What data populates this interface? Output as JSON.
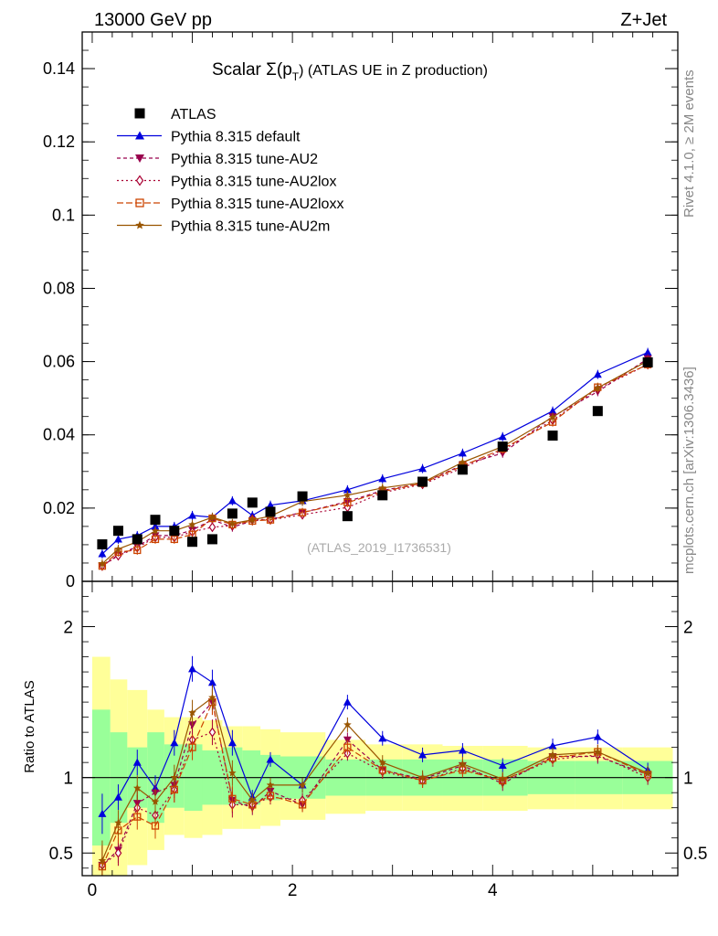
{
  "header": {
    "left": "13000 GeV pp",
    "right": "Z+Jet"
  },
  "side": {
    "rivet": "Rivet 4.1.0, ≥ 2M events",
    "mcplots": "mcplots.cern.ch [arXiv:1306.3436]"
  },
  "chart_data": {
    "type": "line",
    "title_main": "Scalar Σ(p",
    "title_sub": "T",
    "title_rest": ") (ATLAS UE in Z production)",
    "watermark": "(ATLAS_2019_I1736531)",
    "ylabel_ratio": "Ratio to ATLAS",
    "xlim": [
      -0.1,
      5.85
    ],
    "ylim_main": [
      0,
      0.15
    ],
    "ylim_ratio": [
      0.35,
      2.3
    ],
    "x_ticks": [
      {
        "v": 0,
        "label": "0"
      },
      {
        "v": 2,
        "label": "2"
      },
      {
        "v": 4,
        "label": "4"
      }
    ],
    "y_ticks_main": [
      {
        "v": 0,
        "label": "0"
      },
      {
        "v": 0.02,
        "label": "0.02"
      },
      {
        "v": 0.04,
        "label": "0.04"
      },
      {
        "v": 0.06,
        "label": "0.06"
      },
      {
        "v": 0.08,
        "label": "0.08"
      },
      {
        "v": 0.1,
        "label": "0.1"
      },
      {
        "v": 0.12,
        "label": "0.12"
      },
      {
        "v": 0.14,
        "label": "0.14"
      }
    ],
    "y_ticks_ratio": [
      {
        "v": 0.5,
        "label": "0.5"
      },
      {
        "v": 1,
        "label": "1"
      },
      {
        "v": 2,
        "label": "2"
      }
    ],
    "x": [
      0.1,
      0.26,
      0.45,
      0.63,
      0.82,
      1.0,
      1.2,
      1.4,
      1.6,
      1.78,
      2.1,
      2.55,
      2.9,
      3.3,
      3.7,
      4.1,
      4.6,
      5.05,
      5.55
    ],
    "data_points": {
      "name": "ATLAS",
      "values": [
        0.0101,
        0.0138,
        0.0115,
        0.0168,
        0.0138,
        0.0108,
        0.0115,
        0.0185,
        0.0215,
        0.019,
        0.0232,
        0.0178,
        0.0235,
        0.0272,
        0.0305,
        0.0368,
        0.0398,
        0.0465,
        0.0598
      ]
    },
    "series": [
      {
        "name": "Pythia 8.315 default",
        "color": "#0000dd",
        "dash": "",
        "marker": "triangle-up",
        "values": [
          0.0075,
          0.0115,
          0.0125,
          0.015,
          0.015,
          0.018,
          0.0175,
          0.022,
          0.018,
          0.0208,
          0.022,
          0.025,
          0.028,
          0.0308,
          0.035,
          0.0395,
          0.0465,
          0.0565,
          0.0625
        ]
      },
      {
        "name": "Pythia 8.315 tune-AU2",
        "color": "#99004d",
        "dash": "4,3",
        "marker": "triangle-down",
        "values": [
          0.0042,
          0.0072,
          0.0095,
          0.0125,
          0.0125,
          0.014,
          0.0168,
          0.0148,
          0.0165,
          0.017,
          0.0188,
          0.0218,
          0.0248,
          0.0268,
          0.0318,
          0.035,
          0.045,
          0.0518,
          0.0608
        ]
      },
      {
        "name": "Pythia 8.315 tune-AU2lox",
        "color": "#aa0033",
        "dash": "2,3",
        "marker": "diamond",
        "values": [
          0.0042,
          0.007,
          0.0092,
          0.012,
          0.012,
          0.0135,
          0.0148,
          0.0152,
          0.017,
          0.0168,
          0.0182,
          0.0202,
          0.0242,
          0.0265,
          0.031,
          0.0358,
          0.044,
          0.0525,
          0.0592
        ]
      },
      {
        "name": "Pythia 8.315 tune-AU2loxx",
        "color": "#cc4400",
        "dash": "7,3",
        "marker": "square-open",
        "values": [
          0.0042,
          0.008,
          0.0085,
          0.0115,
          0.0115,
          0.0128,
          0.0172,
          0.0155,
          0.0165,
          0.0168,
          0.0188,
          0.0215,
          0.0245,
          0.0268,
          0.0315,
          0.0362,
          0.0435,
          0.053,
          0.0592
        ]
      },
      {
        "name": "Pythia 8.315 tune-AU2m",
        "color": "#995500",
        "dash": "",
        "marker": "star",
        "values": [
          0.0048,
          0.0088,
          0.0108,
          0.0138,
          0.0138,
          0.0155,
          0.0175,
          0.0158,
          0.0168,
          0.0178,
          0.0218,
          0.0235,
          0.0255,
          0.027,
          0.0325,
          0.0368,
          0.0448,
          0.0528,
          0.0602
        ]
      }
    ],
    "ratio_series": [
      {
        "name": "Pythia 8.315 default",
        "values": [
          0.76,
          0.87,
          1.1,
          0.93,
          1.23,
          1.72,
          1.63,
          1.23,
          0.87,
          1.12,
          0.95,
          1.5,
          1.26,
          1.15,
          1.18,
          1.08,
          1.21,
          1.27,
          1.05
        ]
      },
      {
        "name": "Pythia 8.315 tune-AU2",
        "values": [
          0.42,
          0.52,
          0.83,
          0.9,
          0.95,
          1.35,
          1.5,
          0.85,
          0.8,
          0.91,
          0.82,
          1.25,
          1.05,
          0.99,
          1.08,
          0.96,
          1.14,
          1.14,
          1.02
        ]
      },
      {
        "name": "Pythia 8.315 tune-AU2lox",
        "values": [
          0.42,
          0.5,
          0.8,
          0.75,
          0.92,
          1.25,
          1.3,
          0.82,
          0.82,
          0.87,
          0.85,
          1.16,
          1.04,
          0.98,
          1.06,
          0.98,
          1.12,
          1.15,
          1.0
        ]
      },
      {
        "name": "Pythia 8.315 tune-AU2loxx",
        "values": [
          0.41,
          0.65,
          0.74,
          0.68,
          0.92,
          1.2,
          1.5,
          0.86,
          0.82,
          0.88,
          0.82,
          1.2,
          1.05,
          0.98,
          1.05,
          0.98,
          1.13,
          1.17,
          1.02
        ]
      },
      {
        "name": "Pythia 8.315 tune-AU2m",
        "values": [
          0.45,
          0.7,
          0.93,
          0.84,
          1.0,
          1.43,
          1.53,
          1.03,
          0.85,
          0.95,
          0.95,
          1.35,
          1.1,
          1.0,
          1.09,
          0.99,
          1.15,
          1.17,
          1.03
        ]
      }
    ],
    "bands": {
      "x_edges": [
        0.0,
        0.18,
        0.35,
        0.55,
        0.72,
        0.92,
        1.1,
        1.3,
        1.5,
        1.68,
        1.88,
        2.33,
        2.73,
        3.1,
        3.5,
        3.9,
        4.35,
        4.82,
        5.3,
        5.8
      ],
      "green_lo": [
        0.55,
        0.7,
        0.8,
        0.7,
        0.8,
        0.78,
        0.82,
        0.82,
        0.82,
        0.85,
        0.86,
        0.88,
        0.88,
        0.88,
        0.88,
        0.88,
        0.89,
        0.89,
        0.89
      ],
      "green_hi": [
        1.45,
        1.3,
        1.2,
        1.3,
        1.22,
        1.22,
        1.18,
        1.2,
        1.18,
        1.15,
        1.14,
        1.12,
        1.12,
        1.12,
        1.12,
        1.12,
        1.11,
        1.11,
        1.11
      ],
      "yellow_lo": [
        0.2,
        0.35,
        0.42,
        0.52,
        0.62,
        0.6,
        0.62,
        0.66,
        0.66,
        0.68,
        0.72,
        0.76,
        0.78,
        0.78,
        0.78,
        0.78,
        0.79,
        0.79,
        0.79
      ],
      "yellow_hi": [
        1.8,
        1.65,
        1.58,
        1.45,
        1.4,
        1.4,
        1.38,
        1.34,
        1.34,
        1.32,
        1.3,
        1.25,
        1.22,
        1.22,
        1.21,
        1.21,
        1.2,
        1.2,
        1.2
      ]
    }
  }
}
